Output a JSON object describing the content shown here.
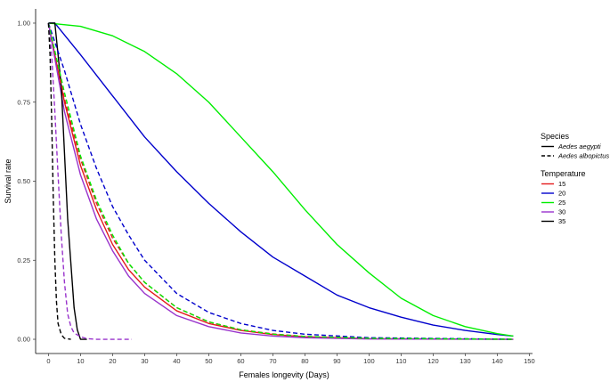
{
  "chart_data": {
    "type": "line",
    "title": "",
    "xlabel": "Females longevity (Days)",
    "ylabel": "Survival rate",
    "xlim": [
      -4,
      151
    ],
    "ylim": [
      0,
      1
    ],
    "x_ticks": [
      "0",
      "10",
      "20",
      "30",
      "40",
      "50",
      "60",
      "70",
      "80",
      "90",
      "100",
      "110",
      "120",
      "130",
      "140",
      "150"
    ],
    "y_ticks": [
      "0.00",
      "0.25",
      "0.50",
      "0.75",
      "1.00"
    ],
    "grid": false,
    "legend_placement": "right",
    "legends": [
      {
        "title": "Species",
        "entries": [
          {
            "label": "Aedes aegypti",
            "linetype": "solid"
          },
          {
            "label": "Aedes albopictus",
            "linetype": "dashed"
          }
        ]
      },
      {
        "title": "Temperature",
        "entries": [
          {
            "label": "15",
            "color": "#e41a1c"
          },
          {
            "label": "20",
            "color": "#0000cc"
          },
          {
            "label": "25",
            "color": "#00ee00"
          },
          {
            "label": "30",
            "color": "#9933cc"
          },
          {
            "label": "35",
            "color": "#000000"
          }
        ]
      }
    ],
    "series": [
      {
        "species": "Aedes aegypti",
        "temperature": "15",
        "color": "#e41a1c",
        "linetype": "solid",
        "points": [
          [
            0,
            1.0
          ],
          [
            5,
            0.75
          ],
          [
            10,
            0.55
          ],
          [
            15,
            0.41
          ],
          [
            20,
            0.3
          ],
          [
            25,
            0.22
          ],
          [
            30,
            0.165
          ],
          [
            40,
            0.09
          ],
          [
            50,
            0.05
          ],
          [
            60,
            0.028
          ],
          [
            70,
            0.015
          ],
          [
            80,
            0.008
          ],
          [
            100,
            0.002
          ],
          [
            145,
            0.0
          ]
        ]
      },
      {
        "species": "Aedes aegypti",
        "temperature": "20",
        "color": "#0000cc",
        "linetype": "solid",
        "points": [
          [
            0,
            1.0
          ],
          [
            2,
            1.0
          ],
          [
            10,
            0.9
          ],
          [
            20,
            0.77
          ],
          [
            30,
            0.64
          ],
          [
            40,
            0.53
          ],
          [
            50,
            0.43
          ],
          [
            60,
            0.34
          ],
          [
            70,
            0.26
          ],
          [
            80,
            0.2
          ],
          [
            90,
            0.14
          ],
          [
            100,
            0.1
          ],
          [
            110,
            0.07
          ],
          [
            120,
            0.045
          ],
          [
            130,
            0.028
          ],
          [
            140,
            0.015
          ],
          [
            145,
            0.01
          ]
        ]
      },
      {
        "species": "Aedes aegypti",
        "temperature": "25",
        "color": "#00ee00",
        "linetype": "solid",
        "points": [
          [
            0,
            1.0
          ],
          [
            10,
            0.99
          ],
          [
            20,
            0.96
          ],
          [
            30,
            0.91
          ],
          [
            40,
            0.84
          ],
          [
            50,
            0.75
          ],
          [
            60,
            0.64
          ],
          [
            70,
            0.53
          ],
          [
            80,
            0.41
          ],
          [
            90,
            0.3
          ],
          [
            100,
            0.21
          ],
          [
            110,
            0.13
          ],
          [
            120,
            0.075
          ],
          [
            130,
            0.04
          ],
          [
            140,
            0.018
          ],
          [
            145,
            0.01
          ]
        ]
      },
      {
        "species": "Aedes aegypti",
        "temperature": "30",
        "color": "#9933cc",
        "linetype": "solid",
        "points": [
          [
            0,
            1.0
          ],
          [
            5,
            0.72
          ],
          [
            10,
            0.52
          ],
          [
            15,
            0.38
          ],
          [
            20,
            0.28
          ],
          [
            25,
            0.2
          ],
          [
            30,
            0.145
          ],
          [
            40,
            0.075
          ],
          [
            50,
            0.04
          ],
          [
            60,
            0.02
          ],
          [
            70,
            0.01
          ],
          [
            80,
            0.005
          ],
          [
            100,
            0.001
          ],
          [
            145,
            0.0
          ]
        ]
      },
      {
        "species": "Aedes aegypti",
        "temperature": "35",
        "color": "#000000",
        "linetype": "solid",
        "points": [
          [
            0,
            1.0
          ],
          [
            2,
            1.0
          ],
          [
            4,
            0.8
          ],
          [
            6,
            0.38
          ],
          [
            8,
            0.1
          ],
          [
            9,
            0.03
          ],
          [
            10,
            0.0
          ],
          [
            12,
            0.0
          ]
        ]
      },
      {
        "species": "Aedes albopictus",
        "temperature": "15",
        "color": "#e41a1c",
        "linetype": "dashed",
        "points": [
          [
            0,
            1.0
          ],
          [
            5,
            0.76
          ],
          [
            10,
            0.57
          ],
          [
            15,
            0.43
          ],
          [
            20,
            0.32
          ],
          [
            25,
            0.24
          ],
          [
            30,
            0.18
          ],
          [
            40,
            0.1
          ],
          [
            50,
            0.055
          ],
          [
            60,
            0.03
          ],
          [
            70,
            0.017
          ],
          [
            80,
            0.009
          ],
          [
            100,
            0.003
          ],
          [
            145,
            0.0
          ]
        ]
      },
      {
        "species": "Aedes albopictus",
        "temperature": "20",
        "color": "#0000cc",
        "linetype": "dashed",
        "points": [
          [
            0,
            1.0
          ],
          [
            5,
            0.85
          ],
          [
            10,
            0.68
          ],
          [
            15,
            0.54
          ],
          [
            20,
            0.42
          ],
          [
            25,
            0.33
          ],
          [
            30,
            0.25
          ],
          [
            40,
            0.145
          ],
          [
            50,
            0.085
          ],
          [
            60,
            0.05
          ],
          [
            70,
            0.028
          ],
          [
            80,
            0.016
          ],
          [
            100,
            0.005
          ],
          [
            145,
            0.0
          ]
        ]
      },
      {
        "species": "Aedes albopictus",
        "temperature": "25",
        "color": "#00ee00",
        "linetype": "dashed",
        "points": [
          [
            0,
            1.0
          ],
          [
            5,
            0.78
          ],
          [
            10,
            0.58
          ],
          [
            15,
            0.44
          ],
          [
            20,
            0.33
          ],
          [
            25,
            0.24
          ],
          [
            30,
            0.18
          ],
          [
            40,
            0.1
          ],
          [
            50,
            0.055
          ],
          [
            60,
            0.03
          ],
          [
            70,
            0.016
          ],
          [
            80,
            0.009
          ],
          [
            100,
            0.003
          ],
          [
            145,
            0.0
          ]
        ]
      },
      {
        "species": "Aedes albopictus",
        "temperature": "30",
        "color": "#9933cc",
        "linetype": "dashed",
        "points": [
          [
            0,
            1.0
          ],
          [
            1,
            0.9
          ],
          [
            2,
            0.72
          ],
          [
            3,
            0.52
          ],
          [
            4,
            0.33
          ],
          [
            5,
            0.18
          ],
          [
            6,
            0.08
          ],
          [
            7,
            0.04
          ],
          [
            8,
            0.02
          ],
          [
            10,
            0.008
          ],
          [
            12,
            0.002
          ],
          [
            15,
            0.0
          ],
          [
            26,
            0.0
          ]
        ]
      },
      {
        "species": "Aedes albopictus",
        "temperature": "35",
        "color": "#000000",
        "linetype": "dashed",
        "points": [
          [
            0,
            1.0
          ],
          [
            0.5,
            0.9
          ],
          [
            1,
            0.7
          ],
          [
            1.5,
            0.45
          ],
          [
            2,
            0.25
          ],
          [
            2.5,
            0.12
          ],
          [
            3,
            0.05
          ],
          [
            4,
            0.015
          ],
          [
            5,
            0.003
          ],
          [
            7,
            0.0
          ]
        ]
      }
    ]
  }
}
